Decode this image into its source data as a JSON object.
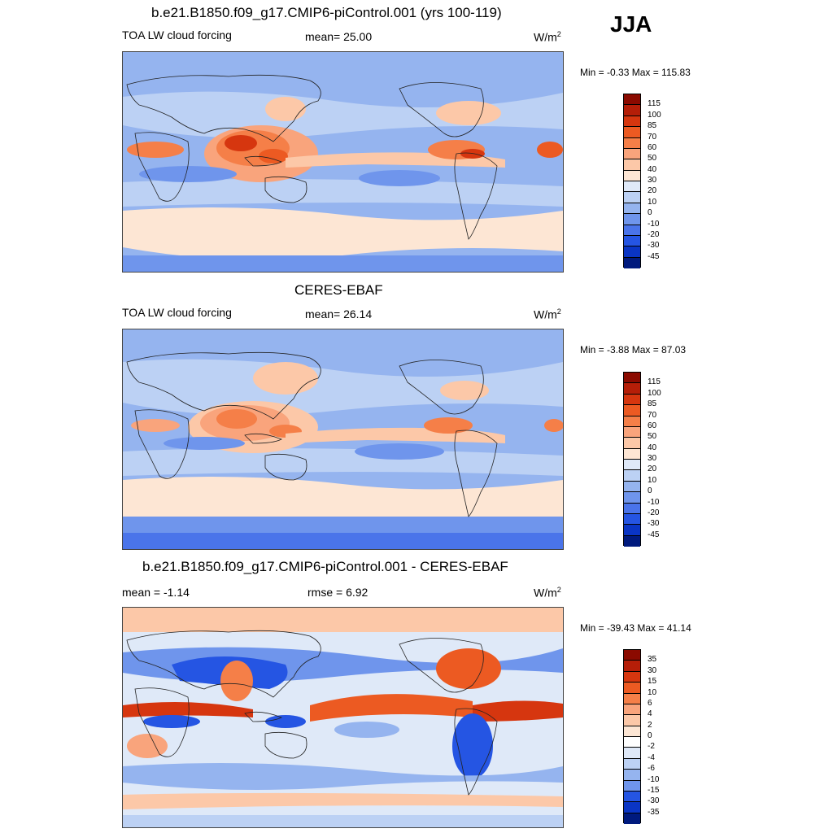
{
  "season": "JJA",
  "panels": [
    {
      "id": "model",
      "title": "b.e21.B1850.f09_g17.CMIP6-piControl.001 (yrs 100-119)",
      "left_label": "TOA LW cloud forcing",
      "center_label": "mean=  25.00",
      "unit_base": "W/m",
      "unit_exp": "2",
      "minmax": "Min =  -0.33 Max = 115.83",
      "colorbar": {
        "labels": [
          "115",
          "100",
          "85",
          "70",
          "60",
          "50",
          "40",
          "30",
          "20",
          "10",
          "0",
          "-10",
          "-20",
          "-30",
          "-45"
        ],
        "colors": [
          "#8b0a00",
          "#b51e08",
          "#d6360f",
          "#ec5a22",
          "#f57f48",
          "#f9a47c",
          "#fcc8a8",
          "#fde6d4",
          "#dfe9f8",
          "#bcd1f4",
          "#95b4ef",
          "#6f95ec",
          "#4a74ea",
          "#2555e3",
          "#0a35c5",
          "#001a7e"
        ]
      }
    },
    {
      "id": "obs",
      "title": "CERES-EBAF",
      "left_label": "TOA LW cloud forcing",
      "center_label": "mean=  26.14",
      "unit_base": "W/m",
      "unit_exp": "2",
      "minmax": "Min =  -3.88 Max =  87.03",
      "colorbar": {
        "labels": [
          "115",
          "100",
          "85",
          "70",
          "60",
          "50",
          "40",
          "30",
          "20",
          "10",
          "0",
          "-10",
          "-20",
          "-30",
          "-45"
        ],
        "colors": [
          "#8b0a00",
          "#b51e08",
          "#d6360f",
          "#ec5a22",
          "#f57f48",
          "#f9a47c",
          "#fcc8a8",
          "#fde6d4",
          "#dfe9f8",
          "#bcd1f4",
          "#95b4ef",
          "#6f95ec",
          "#4a74ea",
          "#2555e3",
          "#0a35c5",
          "#001a7e"
        ]
      }
    },
    {
      "id": "diff",
      "title": "b.e21.B1850.f09_g17.CMIP6-piControl.001 - CERES-EBAF",
      "left_label": "mean =  -1.14",
      "center_label": "rmse =   6.92",
      "unit_base": "W/m",
      "unit_exp": "2",
      "minmax": "Min = -39.43 Max =  41.14",
      "colorbar": {
        "labels": [
          "35",
          "30",
          "15",
          "10",
          "6",
          "4",
          "2",
          "0",
          "-2",
          "-4",
          "-6",
          "-10",
          "-15",
          "-30",
          "-35"
        ],
        "colors": [
          "#8b0a00",
          "#b51e08",
          "#d6360f",
          "#ec5a22",
          "#f57f48",
          "#f9a47c",
          "#fcc8a8",
          "#fde6d4",
          "#ffffff",
          "#dfe9f8",
          "#bcd1f4",
          "#95b4ef",
          "#6f95ec",
          "#2555e3",
          "#0a35c5",
          "#001a7e"
        ]
      }
    }
  ]
}
